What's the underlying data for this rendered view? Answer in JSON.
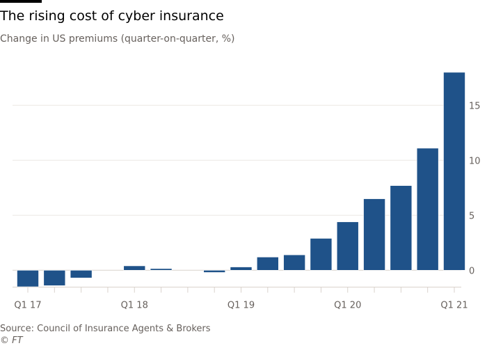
{
  "title": "The rising cost of cyber insurance",
  "subtitle": "Change in US premiums (quarter-on-quarter, %)",
  "source": "Source: Council of Insurance Agents & Brokers",
  "credit": "© FT",
  "chart_data": {
    "type": "bar",
    "categories": [
      "Q1 17",
      "Q2 17",
      "Q3 17",
      "Q4 17",
      "Q1 18",
      "Q2 18",
      "Q3 18",
      "Q4 18",
      "Q1 19",
      "Q2 19",
      "Q3 19",
      "Q4 19",
      "Q1 20",
      "Q2 20",
      "Q3 20",
      "Q4 20",
      "Q1 21"
    ],
    "values": [
      -1.5,
      -1.4,
      -0.7,
      0,
      0.4,
      0.15,
      0,
      -0.2,
      0.3,
      1.2,
      1.4,
      2.9,
      4.4,
      6.5,
      7.7,
      11.1,
      18.0
    ],
    "x_tick_labels": [
      "Q1 17",
      "Q1 18",
      "Q1 19",
      "Q1 20",
      "Q1 21"
    ],
    "y_ticks": [
      0,
      5,
      10,
      15
    ],
    "ylim": [
      -1.5,
      18
    ],
    "y_axis_side": "right",
    "grid": true,
    "bar_color": "#1f5289",
    "grid_color": "#ece7e3"
  }
}
